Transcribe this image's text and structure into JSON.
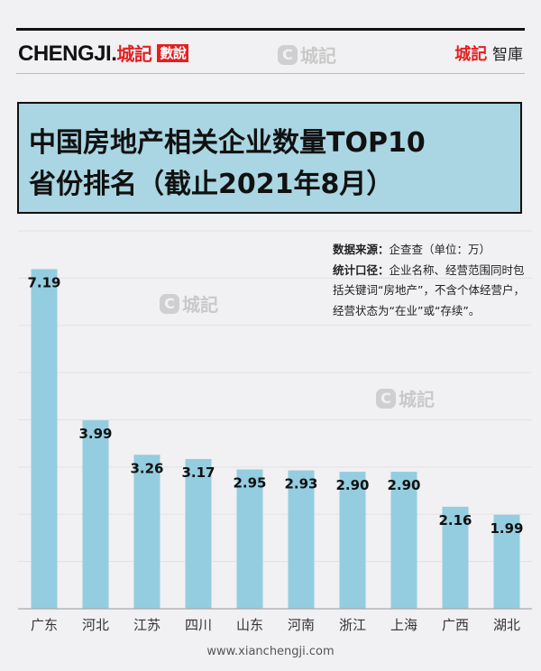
{
  "header": {
    "brand": "CHENGJI.",
    "brand_cn": "城記",
    "brand_tag": "數說",
    "watermark": "城記",
    "watermark_c": "C",
    "think_red": "城記",
    "think_black": "智庫"
  },
  "title": {
    "line1": "中国房地产相关企业数量TOP10",
    "line2": "省份排名（截止2021年8月）"
  },
  "note": {
    "source_label": "数据来源：",
    "source_text": "企查查（单位：万）",
    "scope_label": "统计口径：",
    "scope_text": "企业名称、经营范围同时包括关键词“房地产”，不含个体经营户，经营状态为“在业”或“存续”。"
  },
  "footer": "www.xianchengji.com",
  "colors": {
    "bar": "#94cde0",
    "accent": "#e32020",
    "title_bg": "#a9d6e2"
  },
  "chart_data": {
    "type": "bar",
    "categories": [
      "广东",
      "河北",
      "江苏",
      "四川",
      "山东",
      "河南",
      "浙江",
      "上海",
      "广西",
      "湖北"
    ],
    "values": [
      7.19,
      3.99,
      3.26,
      3.17,
      2.95,
      2.93,
      2.9,
      2.9,
      2.16,
      1.99
    ],
    "labels": [
      "7.19",
      "3.99",
      "3.26",
      "3.17",
      "2.95",
      "2.93",
      "2.90",
      "2.90",
      "2.16",
      "1.99"
    ],
    "ylim": [
      0,
      8
    ],
    "grid": true,
    "unit": "万"
  }
}
